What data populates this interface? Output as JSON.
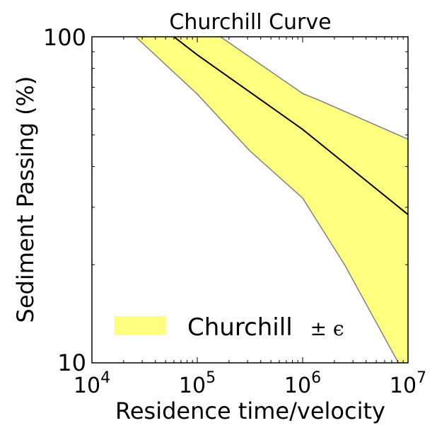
{
  "chart_data": {
    "type": "area",
    "title": "Churchill Curve",
    "xlabel": "Residence time/velocity",
    "ylabel": "Sediment Passing (%)",
    "xscale": "log",
    "yscale": "log",
    "xlim": [
      10000,
      10000000
    ],
    "ylim": [
      10,
      100
    ],
    "xticks": [
      {
        "base": "10",
        "exp": "4"
      },
      {
        "base": "10",
        "exp": "5"
      },
      {
        "base": "10",
        "exp": "6"
      },
      {
        "base": "10",
        "exp": "7"
      }
    ],
    "yticks": [
      "10",
      "100"
    ],
    "legend": {
      "label": "Churchill",
      "symbol": "± ϵ",
      "placement": "lower-left"
    },
    "colors": {
      "band": "#ffff7f",
      "band_edge": "#808080",
      "line": "#000000"
    },
    "series": [
      {
        "name": "Churchill",
        "x": [
          60000,
          100000,
          1000000,
          10000000
        ],
        "y": [
          100,
          88,
          52,
          28.5
        ]
      },
      {
        "name": "Churchill + epsilon",
        "x": [
          166000,
          1000000,
          1500000,
          10000000
        ],
        "y": [
          100,
          67,
          63.5,
          48.5
        ]
      },
      {
        "name": "Churchill - epsilon",
        "x": [
          26000,
          100000,
          313000,
          1000000,
          2500000,
          8100000
        ],
        "y": [
          100,
          66.7,
          44.8,
          32,
          20,
          10
        ]
      }
    ]
  }
}
